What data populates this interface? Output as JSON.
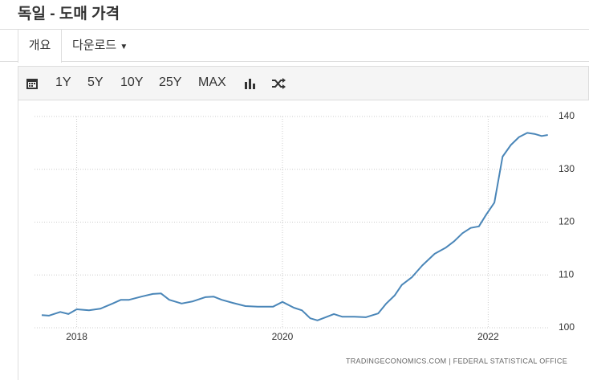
{
  "header": {
    "title": "독일 - 도매 가격"
  },
  "tabs": [
    "개요",
    "다운로드"
  ],
  "toolbar": [
    "1Y",
    "5Y",
    "10Y",
    "25Y",
    "MAX"
  ],
  "chart_data": {
    "type": "line",
    "color": "#4a86b8",
    "grid": true,
    "y_axis_side": "right",
    "source": "TRADINGECONOMICS.COM | FEDERAL STATISTICAL OFFICE",
    "x": [
      2017.66,
      2017.73,
      2017.84,
      2017.92,
      2018.0,
      2018.12,
      2018.23,
      2018.35,
      2018.43,
      2018.51,
      2018.63,
      2018.74,
      2018.82,
      2018.9,
      2019.02,
      2019.13,
      2019.25,
      2019.33,
      2019.41,
      2019.52,
      2019.64,
      2019.76,
      2019.91,
      2020.0,
      2020.11,
      2020.19,
      2020.27,
      2020.34,
      2020.42,
      2020.5,
      2020.58,
      2020.7,
      2020.81,
      2020.93,
      2021.01,
      2021.09,
      2021.16,
      2021.26,
      2021.36,
      2021.48,
      2021.59,
      2021.67,
      2021.75,
      2021.83,
      2021.91,
      2021.98,
      2022.06,
      2022.14,
      2022.22,
      2022.3,
      2022.38,
      2022.45,
      2022.52,
      2022.58
    ],
    "values": [
      102.4,
      102.3,
      103.0,
      102.6,
      103.5,
      103.3,
      103.6,
      104.6,
      105.3,
      105.3,
      105.9,
      106.4,
      106.5,
      105.3,
      104.6,
      105.0,
      105.8,
      105.9,
      105.3,
      104.7,
      104.1,
      104.0,
      104.0,
      104.9,
      103.8,
      103.3,
      101.8,
      101.4,
      102.0,
      102.6,
      102.1,
      102.1,
      102.0,
      102.7,
      104.6,
      106.1,
      108.1,
      109.6,
      111.8,
      114.0,
      115.2,
      116.4,
      117.9,
      118.9,
      119.2,
      121.4,
      123.7,
      132.4,
      134.6,
      136.1,
      136.9,
      136.7,
      136.3,
      136.5
    ],
    "xlim": [
      2017.59,
      2022.59
    ],
    "xticks": [
      2018,
      2020,
      2022
    ],
    "ylim": [
      100,
      140
    ],
    "yticks": [
      100,
      110,
      120,
      130,
      140
    ]
  }
}
